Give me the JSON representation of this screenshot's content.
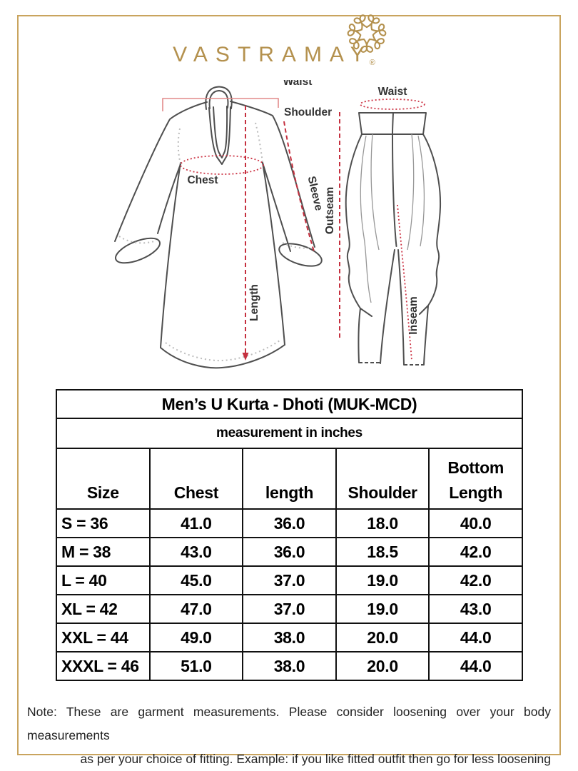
{
  "brand": {
    "name": "VASTRAMAY",
    "registered_mark": "®",
    "accent_gold": "#b4914e"
  },
  "diagram": {
    "annotation_color": "#c5303f",
    "kurta": {
      "waist_label": "Waist",
      "shoulder_label": "Shoulder",
      "chest_label": "Chest",
      "sleeve_label": "Sleeve",
      "length_label": "Length"
    },
    "dhoti": {
      "waist_label": "Waist",
      "outseam_label": "Outseam",
      "inseam_label": "Inseam"
    }
  },
  "size_chart": {
    "title": "Men’s U Kurta - Dhoti (MUK-MCD)",
    "subtitle": "measurement in inches",
    "columns": [
      "Size",
      "Chest",
      "length",
      "Shoulder",
      "Bottom Length"
    ],
    "rows": [
      {
        "size": "S = 36",
        "chest": "41.0",
        "length": "36.0",
        "shoulder": "18.0",
        "bottom_length": "40.0"
      },
      {
        "size": "M = 38",
        "chest": "43.0",
        "length": "36.0",
        "shoulder": "18.5",
        "bottom_length": "42.0"
      },
      {
        "size": "L = 40",
        "chest": "45.0",
        "length": "37.0",
        "shoulder": "19.0",
        "bottom_length": "42.0"
      },
      {
        "size": "XL = 42",
        "chest": "47.0",
        "length": "37.0",
        "shoulder": "19.0",
        "bottom_length": "43.0"
      },
      {
        "size": "XXL = 44",
        "chest": "49.0",
        "length": "38.0",
        "shoulder": "20.0",
        "bottom_length": "44.0"
      },
      {
        "size": "XXXL = 46",
        "chest": "51.0",
        "length": "38.0",
        "shoulder": "20.0",
        "bottom_length": "44.0"
      }
    ]
  },
  "note": {
    "line1": "Note: These are garment measurements. Please consider loosening over your body measurements",
    "line2": "as per your choice of fitting. Example: if you like fitted outfit then go for less loosening"
  }
}
